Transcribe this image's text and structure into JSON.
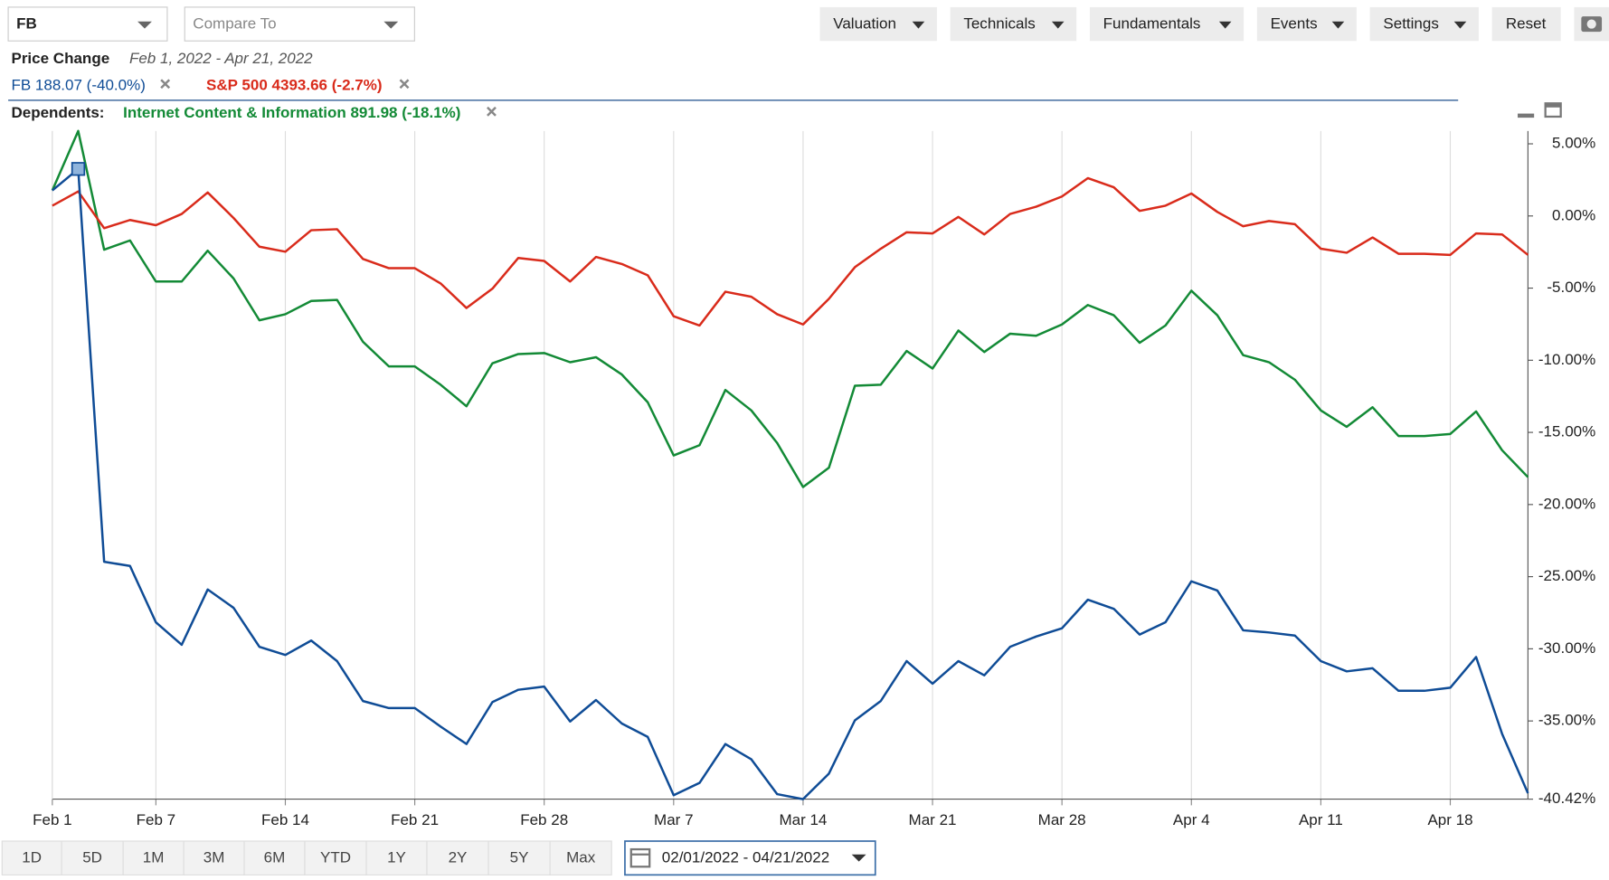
{
  "toolbar": {
    "symbol": "FB",
    "compare_placeholder": "Compare To",
    "menus": [
      "Valuation",
      "Technicals",
      "Fundamentals",
      "Events",
      "Settings"
    ],
    "reset": "Reset",
    "ranges": [
      "1D",
      "5D",
      "1M",
      "3M",
      "6M",
      "YTD",
      "1Y",
      "2Y",
      "5Y",
      "Max"
    ],
    "date_range": "02/01/2022 - 04/21/2022"
  },
  "chart_data": {
    "type": "line",
    "title": "Price Change",
    "subtitle": "Feb 1, 2022 - Apr 21, 2022",
    "dependents_label": "Dependents:",
    "categories": [
      "Feb 1",
      null,
      null,
      null,
      "Feb 7",
      null,
      null,
      null,
      null,
      "Feb 14",
      null,
      null,
      null,
      null,
      "Feb 21",
      null,
      null,
      null,
      null,
      "Feb 28",
      null,
      null,
      null,
      null,
      "Mar 7",
      null,
      null,
      null,
      null,
      "Mar 14",
      null,
      null,
      null,
      null,
      "Mar 21",
      null,
      null,
      null,
      null,
      "Mar 28",
      null,
      null,
      null,
      null,
      "Apr 4",
      null,
      null,
      null,
      null,
      "Apr 11",
      null,
      null,
      null,
      null,
      "Apr 18",
      null,
      null,
      null
    ],
    "series": [
      {
        "name": "FB 188.07 (-40.0%)",
        "color": "#0f4c96",
        "values": [
          1.77,
          3.26,
          -23.97,
          -24.26,
          -28.16,
          -29.72,
          -25.89,
          -27.16,
          -29.86,
          -30.43,
          -29.43,
          -30.85,
          -33.62,
          -34.11,
          -34.11,
          -35.39,
          -36.6,
          -33.69,
          -32.84,
          -32.62,
          -35.04,
          -33.55,
          -35.18,
          -36.1,
          -40.14,
          -39.29,
          -36.6,
          -37.66,
          -40.07,
          -40.42,
          -38.65,
          -34.96,
          -33.62,
          -30.85,
          -32.41,
          -30.85,
          -31.84,
          -29.86,
          -29.15,
          -28.58,
          -26.6,
          -27.23,
          -29.01,
          -28.16,
          -25.32,
          -25.96,
          -28.72,
          -28.87,
          -29.08,
          -30.85,
          -31.56,
          -31.35,
          -32.91,
          -32.91,
          -32.7,
          -30.57,
          -35.89,
          -40.0
        ]
      },
      {
        "name": "S&P 500 4393.66 (-2.7%)",
        "color": "#d92b1b",
        "values": [
          0.71,
          1.7,
          -0.85,
          -0.28,
          -0.64,
          0.14,
          1.63,
          -0.14,
          -2.13,
          -2.48,
          -0.99,
          -0.92,
          -2.98,
          -3.62,
          -3.62,
          -4.68,
          -6.38,
          -5.04,
          -2.91,
          -3.12,
          -4.54,
          -2.84,
          -3.33,
          -4.11,
          -6.95,
          -7.59,
          -5.25,
          -5.6,
          -6.81,
          -7.52,
          -5.74,
          -3.55,
          -2.27,
          -1.13,
          -1.21,
          -0.07,
          -1.28,
          0.14,
          0.64,
          1.35,
          2.62,
          1.99,
          0.35,
          0.71,
          1.56,
          0.28,
          -0.71,
          -0.35,
          -0.57,
          -2.27,
          -2.55,
          -1.49,
          -2.62,
          -2.62,
          -2.7,
          -1.21,
          -1.28,
          -2.7
        ]
      },
      {
        "name": "Internet Content & Information 891.98 (-18.1%)",
        "color": "#138a36",
        "values": [
          1.77,
          5.89,
          -2.34,
          -1.7,
          -4.54,
          -4.54,
          -2.41,
          -4.33,
          -7.23,
          -6.81,
          -5.89,
          -5.82,
          -8.72,
          -10.43,
          -10.43,
          -11.7,
          -13.19,
          -10.21,
          -9.57,
          -9.5,
          -10.14,
          -9.79,
          -10.99,
          -12.91,
          -16.6,
          -15.89,
          -12.06,
          -13.48,
          -15.74,
          -18.79,
          -17.45,
          -11.77,
          -11.7,
          -9.36,
          -10.57,
          -7.94,
          -9.43,
          -8.16,
          -8.3,
          -7.52,
          -6.17,
          -6.88,
          -8.79,
          -7.59,
          -5.18,
          -6.88,
          -9.65,
          -10.14,
          -11.35,
          -13.48,
          -14.61,
          -13.26,
          -15.25,
          -15.25,
          -15.11,
          -13.55,
          -16.24,
          -18.1
        ]
      }
    ],
    "ylim": [
      -40.42,
      5.89
    ],
    "yticks": [
      {
        "value": 5,
        "label": "5.00%"
      },
      {
        "value": 0,
        "label": "0.00%"
      },
      {
        "value": -5,
        "label": "-5.00%"
      },
      {
        "value": -10,
        "label": "-10.00%"
      },
      {
        "value": -15,
        "label": "-15.00%"
      },
      {
        "value": -20,
        "label": "-20.00%"
      },
      {
        "value": -25,
        "label": "-25.00%"
      },
      {
        "value": -30,
        "label": "-30.00%"
      },
      {
        "value": -35,
        "label": "-35.00%"
      },
      {
        "value": -40.42,
        "label": "-40.42%"
      }
    ],
    "grid": true
  }
}
